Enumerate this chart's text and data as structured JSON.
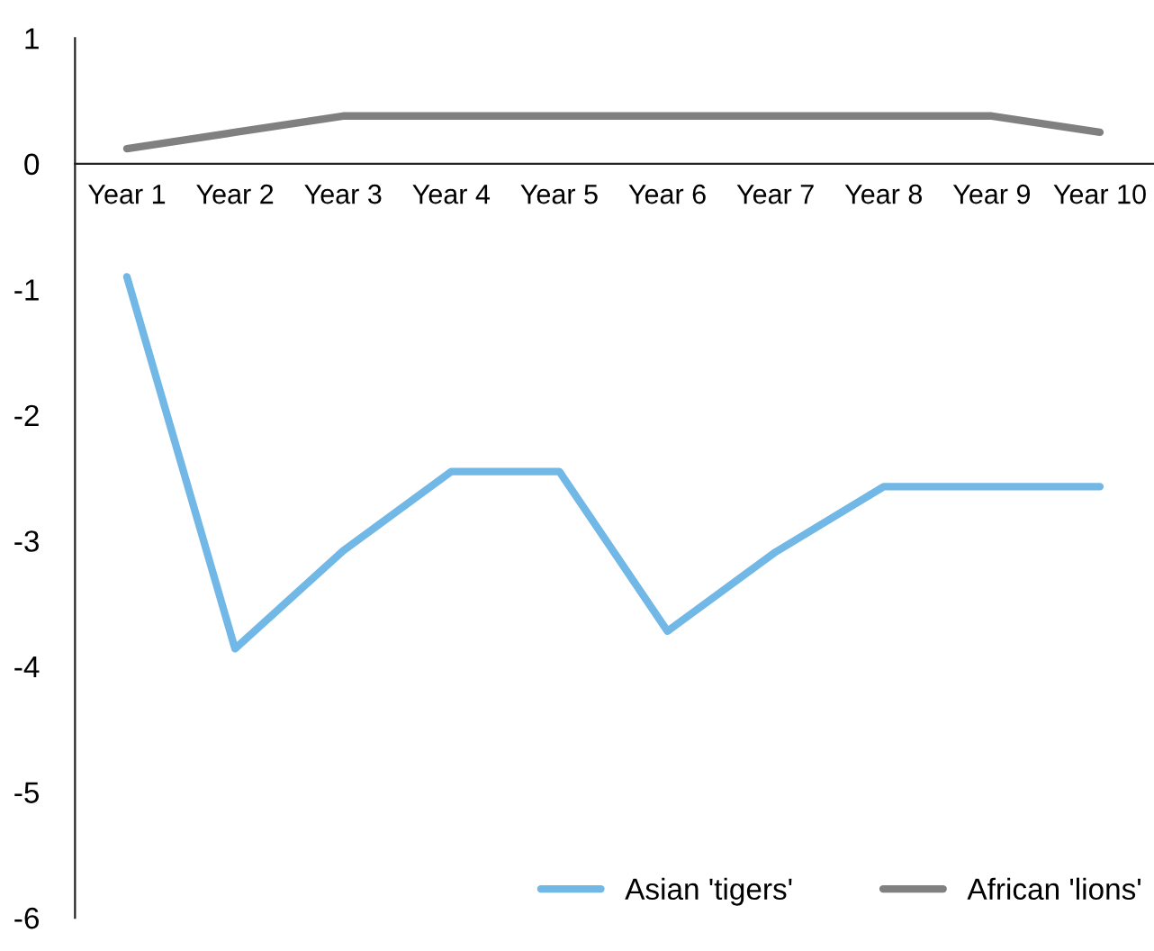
{
  "chart_data": {
    "type": "line",
    "categories": [
      "Year 1",
      "Year 2",
      "Year 3",
      "Year 4",
      "Year 5",
      "Year 6",
      "Year 7",
      "Year 8",
      "Year 9",
      "Year 10"
    ],
    "series": [
      {
        "name": "Asian 'tigers'",
        "color": "#72b8e6",
        "values": [
          -0.9,
          -3.86,
          -3.08,
          -2.45,
          -2.45,
          -3.72,
          -3.09,
          -2.57,
          -2.57,
          -2.57
        ]
      },
      {
        "name": "African 'lions'",
        "color": "#808080",
        "values": [
          0.12,
          0.25,
          0.38,
          0.38,
          0.38,
          0.38,
          0.38,
          0.38,
          0.38,
          0.25
        ]
      }
    ],
    "ylim": [
      -6,
      1
    ],
    "yticks": [
      1,
      0,
      {
        "value": -1,
        "label": "-1"
      },
      {
        "value": -2,
        "label": "-2"
      },
      {
        "value": -3,
        "label": "-3"
      },
      {
        "value": -4,
        "label": "-4"
      },
      {
        "value": -5,
        "label": "-5"
      },
      {
        "value": -6,
        "label": "-6"
      }
    ],
    "grid": false,
    "legend": "bottom right",
    "marker": "none",
    "line_style": "solid"
  }
}
